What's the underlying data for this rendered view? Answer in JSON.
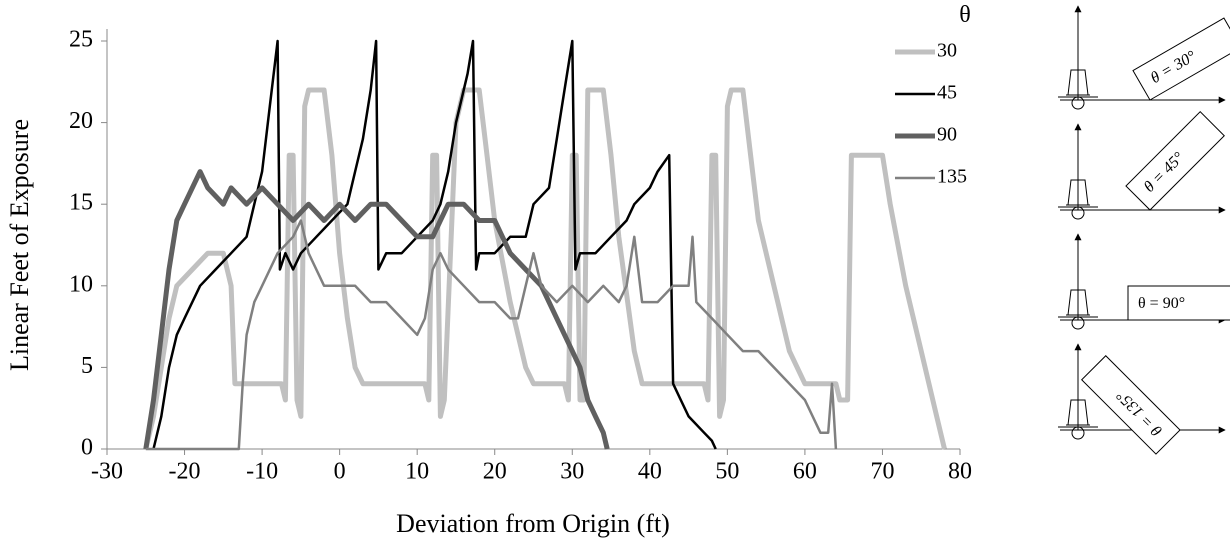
{
  "chart_data": {
    "type": "line",
    "ylabel": "Linear  Feet of Exposure",
    "xlabel": "Deviation from Origin (ft)",
    "legend_title": "θ",
    "legend_position": "top-right",
    "xlim": [
      -30,
      80
    ],
    "xticks": [
      -30,
      -20,
      -10,
      0,
      10,
      20,
      30,
      40,
      50,
      60,
      70,
      80
    ],
    "ylim": [
      0,
      25
    ],
    "yticks": [
      0,
      5,
      10,
      15,
      20,
      25
    ],
    "grid": false,
    "annotations": [
      "θ = 30°",
      "θ = 45°",
      "θ = 90°",
      "θ = 135°"
    ],
    "series": [
      {
        "name": "30",
        "color": "#c0c0c0",
        "line_width": 5,
        "x": [
          -25,
          -24,
          -23,
          -22,
          -21,
          -19,
          -17,
          -15,
          -14,
          -13.5,
          -7.5,
          -7,
          -6.5,
          -6,
          -5.5,
          -5,
          -4.5,
          -4,
          -2,
          -1,
          0,
          1,
          2,
          3,
          11,
          11.5,
          12,
          12.5,
          13,
          13.5,
          15,
          16,
          18,
          19,
          20,
          22,
          24,
          25,
          29,
          29.5,
          30,
          30.5,
          31,
          31.5,
          32,
          34,
          35,
          36,
          38,
          39,
          47,
          47.5,
          48,
          48.5,
          49,
          49.5,
          50,
          50.5,
          52,
          53,
          54,
          56,
          58,
          60,
          64,
          64.5,
          65.5,
          66,
          70,
          71,
          73,
          75,
          77,
          78
        ],
        "values": [
          0,
          2,
          5,
          8,
          10,
          11,
          12,
          12,
          10,
          4,
          4,
          3,
          18,
          18,
          3,
          2,
          21,
          22,
          22,
          18,
          12,
          8,
          5,
          4,
          4,
          3,
          18,
          18,
          2,
          3,
          20,
          22,
          22,
          18,
          14,
          9,
          5,
          4,
          4,
          3,
          18,
          18,
          3,
          3,
          22,
          22,
          18,
          13,
          6,
          4,
          4,
          3,
          18,
          18,
          2,
          3,
          21,
          22,
          22,
          18,
          14,
          10,
          6,
          4,
          4,
          3,
          3,
          18,
          18,
          15,
          10,
          6,
          2,
          0
        ]
      },
      {
        "name": "45",
        "color": "#000000",
        "line_width": 2.5,
        "x": [
          -24,
          -23,
          -22,
          -21,
          -20,
          -18,
          -16,
          -14,
          -12,
          -11,
          -10,
          -9,
          -8,
          -7.7,
          -7,
          -6,
          -5,
          -3,
          -1,
          1,
          2,
          3,
          4,
          4.7,
          5,
          6,
          8,
          10,
          12,
          13,
          14,
          15,
          16.5,
          17.2,
          17.6,
          18,
          20,
          22,
          24,
          25,
          27,
          28,
          29,
          30,
          30.4,
          31,
          33,
          35,
          37,
          38,
          40,
          41,
          42.5,
          43,
          44,
          45,
          47,
          48,
          48.5
        ],
        "values": [
          0,
          2,
          5,
          7,
          8,
          10,
          11,
          12,
          13,
          15,
          17,
          21,
          25,
          11,
          12,
          11,
          12,
          13,
          14,
          15,
          17,
          19,
          22,
          25,
          11,
          12,
          12,
          13,
          14,
          15,
          17,
          20,
          23,
          25,
          11,
          12,
          12,
          13,
          13,
          15,
          16,
          19,
          22,
          25,
          11,
          12,
          12,
          13,
          14,
          15,
          16,
          17,
          18,
          4,
          3,
          2,
          1,
          0.5,
          0
        ]
      },
      {
        "name": "90",
        "color": "#606060",
        "line_width": 5,
        "x": [
          -25,
          -24,
          -23,
          -22,
          -21,
          -20,
          -18,
          -17,
          -15,
          -14,
          -12,
          -10,
          -8,
          -6,
          -4,
          -2,
          0,
          2,
          4,
          6,
          8,
          10,
          12,
          13,
          14,
          16,
          18,
          20,
          22,
          24,
          26,
          28,
          30,
          31,
          32,
          33,
          34,
          34.5
        ],
        "values": [
          0,
          3,
          7,
          11,
          14,
          15,
          17,
          16,
          15,
          16,
          15,
          16,
          15,
          14,
          15,
          14,
          15,
          14,
          15,
          15,
          14,
          13,
          13,
          14,
          15,
          15,
          14,
          14,
          12,
          11,
          10,
          8,
          6,
          5,
          3,
          2,
          1,
          0
        ]
      },
      {
        "name": "135",
        "color": "#808080",
        "line_width": 2.5,
        "x": [
          -25,
          -13,
          -12.5,
          -12,
          -11,
          -10,
          -8,
          -6,
          -5,
          -4,
          -2,
          0,
          2,
          4,
          6,
          8,
          10,
          11,
          12,
          13,
          14,
          16,
          18,
          20,
          22,
          23,
          24,
          25,
          26,
          28,
          30,
          32,
          34,
          36,
          37,
          38,
          39,
          41,
          43,
          45,
          45.5,
          46,
          48,
          50,
          52,
          54,
          56,
          58,
          60,
          62,
          63,
          63.5,
          64
        ],
        "values": [
          0,
          0,
          4,
          7,
          9,
          10,
          12,
          13,
          14,
          12,
          10,
          10,
          10,
          9,
          9,
          8,
          7,
          8,
          11,
          12,
          11,
          10,
          9,
          9,
          8,
          8,
          10,
          12,
          10,
          9,
          10,
          9,
          10,
          9,
          10,
          13,
          9,
          9,
          10,
          10,
          13,
          9,
          8,
          7,
          6,
          6,
          5,
          4,
          3,
          1,
          1,
          4,
          0
        ]
      }
    ]
  }
}
